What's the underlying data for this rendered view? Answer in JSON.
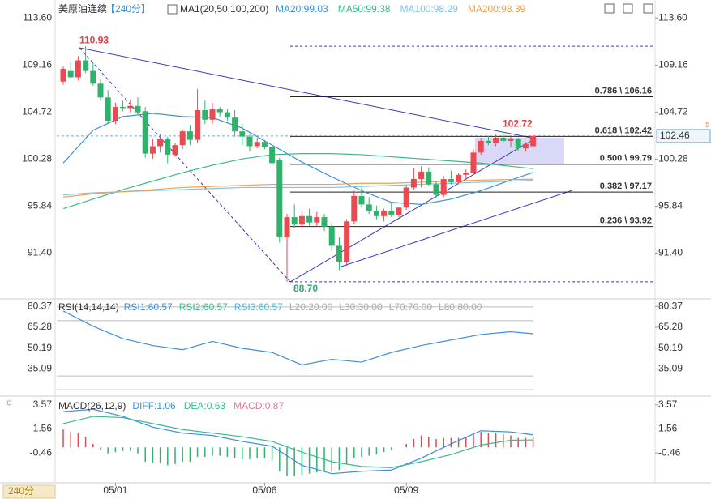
{
  "header": {
    "symbol": "美原油连续",
    "period": "【240分】",
    "ma_title": "MA1(20,50,100,200)"
  },
  "chart_data": [
    {
      "type": "candlestick",
      "up_color": "#ea4a50",
      "down_color": "#2fb36b",
      "ohlc": [
        [
          107.6,
          109.0,
          107.3,
          108.8
        ],
        [
          108.6,
          109.5,
          107.9,
          108.0
        ],
        [
          108.0,
          110.0,
          107.7,
          109.6
        ],
        [
          109.6,
          110.93,
          108.4,
          108.6
        ],
        [
          108.6,
          109.4,
          107.2,
          107.4
        ],
        [
          107.4,
          107.8,
          105.8,
          106.1
        ],
        [
          106.1,
          106.8,
          103.6,
          103.9
        ],
        [
          103.9,
          105.6,
          103.6,
          105.2
        ],
        [
          105.2,
          105.8,
          104.8,
          105.1
        ],
        [
          105.1,
          105.9,
          104.7,
          105.3
        ],
        [
          105.3,
          106.1,
          104.5,
          104.7
        ],
        [
          104.8,
          105.2,
          100.4,
          100.8
        ],
        [
          100.8,
          102.2,
          100.3,
          101.5
        ],
        [
          101.5,
          102.6,
          100.9,
          102.2
        ],
        [
          102.2,
          102.4,
          99.9,
          100.7
        ],
        [
          100.7,
          101.8,
          100.5,
          101.6
        ],
        [
          101.6,
          103.1,
          101.2,
          102.9
        ],
        [
          102.9,
          103.5,
          101.6,
          102.1
        ],
        [
          102.1,
          106.9,
          101.8,
          104.9
        ],
        [
          104.9,
          105.8,
          103.6,
          104.0
        ],
        [
          104.0,
          105.6,
          103.6,
          105.0
        ],
        [
          105.0,
          105.2,
          104.3,
          104.7
        ],
        [
          104.7,
          105.0,
          103.9,
          104.2
        ],
        [
          104.2,
          104.9,
          102.4,
          102.9
        ],
        [
          102.9,
          103.6,
          101.6,
          102.4
        ],
        [
          102.4,
          102.7,
          101.0,
          101.5
        ],
        [
          101.5,
          102.3,
          101.3,
          101.9
        ],
        [
          101.9,
          102.1,
          101.2,
          101.4
        ],
        [
          101.4,
          101.6,
          99.6,
          99.9
        ],
        [
          100.2,
          100.4,
          92.4,
          92.9
        ],
        [
          92.9,
          95.1,
          88.7,
          94.8
        ],
        [
          94.8,
          96.0,
          93.8,
          94.1
        ],
        [
          94.1,
          95.4,
          93.7,
          94.9
        ],
        [
          94.9,
          95.6,
          94.0,
          94.3
        ],
        [
          94.3,
          95.3,
          93.9,
          94.8
        ],
        [
          94.8,
          95.1,
          93.5,
          93.9
        ],
        [
          93.9,
          94.3,
          91.6,
          92.1
        ],
        [
          92.1,
          92.9,
          89.8,
          90.6
        ],
        [
          90.6,
          94.6,
          90.2,
          94.4
        ],
        [
          94.4,
          97.3,
          94.1,
          96.8
        ],
        [
          96.8,
          97.6,
          95.7,
          96.0
        ],
        [
          96.0,
          96.7,
          95.1,
          95.4
        ],
        [
          95.4,
          95.9,
          94.6,
          94.9
        ],
        [
          94.9,
          95.6,
          94.4,
          95.4
        ],
        [
          95.4,
          96.2,
          94.8,
          95.0
        ],
        [
          95.0,
          95.8,
          94.8,
          95.7
        ],
        [
          95.7,
          97.8,
          95.5,
          97.6
        ],
        [
          97.6,
          99.4,
          97.4,
          98.4
        ],
        [
          98.4,
          99.6,
          97.6,
          99.1
        ],
        [
          99.1,
          99.5,
          97.7,
          97.9
        ],
        [
          97.9,
          98.2,
          96.6,
          96.9
        ],
        [
          96.9,
          98.7,
          96.7,
          98.4
        ],
        [
          98.4,
          99.2,
          97.9,
          98.1
        ],
        [
          98.1,
          99.0,
          97.9,
          98.8
        ],
        [
          98.8,
          99.3,
          98.3,
          99.0
        ],
        [
          99.0,
          101.2,
          98.9,
          100.9
        ],
        [
          100.9,
          102.3,
          100.7,
          102.0
        ],
        [
          102.0,
          102.5,
          101.6,
          101.8
        ],
        [
          101.8,
          102.6,
          101.5,
          102.3
        ],
        [
          102.3,
          102.72,
          101.8,
          102.0
        ],
        [
          102.0,
          102.4,
          101.4,
          102.2
        ],
        [
          102.2,
          102.3,
          101.1,
          101.3
        ],
        [
          101.3,
          101.9,
          101.0,
          101.7
        ],
        [
          101.5,
          102.6,
          101.3,
          102.46
        ]
      ],
      "categories": [
        null,
        null,
        null,
        null,
        null,
        null,
        null,
        "05/01",
        null,
        null,
        null,
        null,
        null,
        null,
        null,
        null,
        null,
        null,
        null,
        null,
        null,
        null,
        null,
        null,
        null,
        null,
        null,
        "05/06",
        null,
        null,
        null,
        null,
        null,
        null,
        null,
        null,
        null,
        null,
        null,
        null,
        null,
        null,
        null,
        null,
        null,
        null,
        "05/09",
        null,
        null,
        null,
        null,
        null,
        null,
        null,
        null,
        null,
        null,
        null,
        null,
        null,
        null,
        null,
        null,
        null
      ],
      "x": [
        0,
        4,
        8,
        12,
        16,
        20,
        24,
        28,
        32,
        36,
        40,
        44,
        48,
        52,
        56,
        60,
        63
      ],
      "series": [
        {
          "name": "MA20:99.03",
          "color": "#3b8fd9",
          "values": [
            99.9,
            103.0,
            104.3,
            104.6,
            104.3,
            104.2,
            103.2,
            101.6,
            100.0,
            98.6,
            97.3,
            96.2,
            96.0,
            96.5,
            97.3,
            98.3,
            99.03
          ]
        },
        {
          "name": "MA50:99.38",
          "color": "#3cb98c",
          "values": [
            95.6,
            96.5,
            97.4,
            98.2,
            99.0,
            99.7,
            100.3,
            100.7,
            100.8,
            100.8,
            100.7,
            100.5,
            100.3,
            100.1,
            99.9,
            99.6,
            99.38
          ]
        },
        {
          "name": "MA100:98.29",
          "color": "#7cc3ea",
          "values": [
            96.9,
            97.1,
            97.2,
            97.3,
            97.4,
            97.5,
            97.6,
            97.6,
            97.6,
            97.6,
            97.7,
            97.8,
            97.9,
            98.0,
            98.1,
            98.2,
            98.29
          ]
        },
        {
          "name": "MA200:98.39",
          "color": "#f0a04b",
          "values": [
            96.7,
            97.0,
            97.2,
            97.4,
            97.6,
            97.7,
            97.8,
            97.9,
            97.9,
            97.9,
            98.0,
            98.0,
            98.1,
            98.2,
            98.3,
            98.35,
            98.39
          ]
        }
      ],
      "ylim": [
        88.0,
        115.3
      ],
      "yticks": [
        {
          "value": 113.6,
          "label": "113.60"
        },
        109.16,
        104.72,
        100.28,
        95.84,
        {
          "value": 91.4,
          "label": "91.40"
        }
      ],
      "fib": [
        {
          "value": 106.16,
          "label": "0.786 \\ 106.16"
        },
        {
          "value": 102.42,
          "label": "0.618 \\ 102.42"
        },
        {
          "value": 99.79,
          "label": "0.500 \\ 99.79"
        },
        {
          "value": 97.17,
          "label": "0.382 \\ 97.17"
        },
        {
          "value": 93.92,
          "label": "0.236 \\ 93.92"
        }
      ],
      "annotations": [
        {
          "value": 110.93,
          "label": "110.93",
          "color": "#e0404a"
        },
        {
          "value": 88.7,
          "label": "88.70",
          "color": "#3aa76d"
        },
        {
          "value": 102.72,
          "label": "102.72",
          "color": "#e0404a"
        }
      ],
      "range_lines": [
        110.93,
        88.7
      ],
      "last_price": 102.46
    },
    {
      "type": "line",
      "title": "RSI(14,14,14)",
      "x": [
        0,
        4,
        8,
        12,
        16,
        20,
        24,
        28,
        32,
        36,
        40,
        44,
        48,
        52,
        56,
        60,
        63
      ],
      "values": [
        77,
        66,
        57,
        52,
        49,
        55,
        50,
        47,
        38,
        42,
        40,
        47,
        52,
        56,
        60,
        62,
        60.57
      ],
      "color": "#3f8fd8",
      "legend": [
        {
          "name": "RSI1:60.57",
          "color": "#3b8fd9"
        },
        {
          "name": "RSI2:60.57",
          "color": "#3cb98c"
        },
        {
          "name": "RSI3:60.57",
          "color": "#4db6d8"
        },
        {
          "name": "L20:20.00",
          "color": "#aaaaaa"
        },
        {
          "name": "L30:30.00",
          "color": "#aaaaaa"
        },
        {
          "name": "L70:70.00",
          "color": "#aaaaaa"
        },
        {
          "name": "L80:80.00",
          "color": "#aaaaaa"
        }
      ],
      "levels": [
        80,
        70,
        30,
        20
      ],
      "ylim": [
        16,
        84
      ],
      "yticks": [
        80.37,
        65.28,
        50.19,
        35.09
      ]
    },
    {
      "type": "macd",
      "title": "MACD(26,12,9)",
      "x": [
        0,
        4,
        8,
        12,
        16,
        20,
        24,
        28,
        32,
        36,
        40,
        44,
        48,
        52,
        56,
        60,
        63
      ],
      "histogram": [
        1.5,
        1.3,
        1.2,
        0.9,
        0.3,
        -0.2,
        -0.5,
        -0.4,
        -0.3,
        -0.3,
        -0.5,
        -1.2,
        -1.3,
        -1.3,
        -1.5,
        -1.4,
        -1.2,
        -1.2,
        -0.8,
        -0.8,
        -0.7,
        -0.7,
        -0.8,
        -0.9,
        -1.0,
        -1.0,
        -0.9,
        -0.9,
        -1.1,
        -2.0,
        -2.4,
        -2.4,
        -2.3,
        -2.2,
        -2.1,
        -2.0,
        -2.0,
        -1.9,
        -1.4,
        -0.9,
        -0.8,
        -0.7,
        -0.6,
        -0.4,
        -0.2,
        0.0,
        0.3,
        0.7,
        1.0,
        0.9,
        0.7,
        0.8,
        0.8,
        0.8,
        0.9,
        1.1,
        1.3,
        1.2,
        1.2,
        1.1,
        1.0,
        0.8,
        0.8,
        0.87
      ],
      "pos_color": "#e04a50",
      "neg_color": "#2fb36b",
      "series": [
        {
          "name": "DIFF:1.06",
          "color": "#3b8fd9",
          "values": [
            3.0,
            3.2,
            2.6,
            1.7,
            1.2,
            1.0,
            0.5,
            0.1,
            -1.5,
            -2.2,
            -2.0,
            -1.9,
            -0.9,
            0.3,
            1.4,
            1.3,
            1.06
          ]
        },
        {
          "name": "DEA:0.63",
          "color": "#3cb98c",
          "values": [
            2.0,
            2.6,
            2.5,
            2.0,
            1.5,
            1.2,
            0.9,
            0.5,
            -0.4,
            -1.2,
            -1.6,
            -1.7,
            -1.2,
            -0.6,
            0.2,
            0.6,
            0.63
          ]
        }
      ],
      "macd_label": {
        "name": "MACD:0.87",
        "color": "#e07a9a"
      },
      "ylim": [
        -2.9,
        4.1
      ],
      "yticks": [
        3.57,
        1.56,
        -0.46
      ]
    }
  ],
  "footer": {
    "period_button": "240分"
  }
}
